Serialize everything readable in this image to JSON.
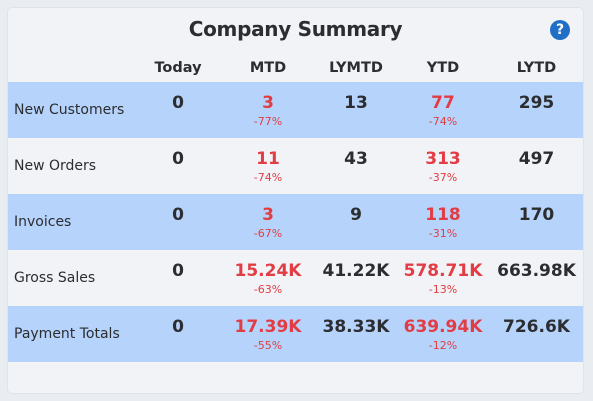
{
  "widget": {
    "title": "Company Summary",
    "help_icon_glyph": "?",
    "colors": {
      "shaded_row": "#b6d3fb",
      "negative": "#e23c44",
      "help_icon": "#1f6fc6"
    }
  },
  "columns": [
    "Today",
    "MTD",
    "LYMTD",
    "YTD",
    "LYTD"
  ],
  "rows": [
    {
      "label": "New Customers",
      "today": "0",
      "mtd": "3",
      "mtd_change": "-77%",
      "lymtd": "13",
      "ytd": "77",
      "ytd_change": "-74%",
      "lytd": "295"
    },
    {
      "label": "New Orders",
      "today": "0",
      "mtd": "11",
      "mtd_change": "-74%",
      "lymtd": "43",
      "ytd": "313",
      "ytd_change": "-37%",
      "lytd": "497"
    },
    {
      "label": "Invoices",
      "today": "0",
      "mtd": "3",
      "mtd_change": "-67%",
      "lymtd": "9",
      "ytd": "118",
      "ytd_change": "-31%",
      "lytd": "170"
    },
    {
      "label": "Gross Sales",
      "today": "0",
      "mtd": "15.24K",
      "mtd_change": "-63%",
      "lymtd": "41.22K",
      "ytd": "578.71K",
      "ytd_change": "-13%",
      "lytd": "663.98K"
    },
    {
      "label": "Payment Totals",
      "today": "0",
      "mtd": "17.39K",
      "mtd_change": "-55%",
      "lymtd": "38.33K",
      "ytd": "639.94K",
      "ytd_change": "-12%",
      "lytd": "726.6K"
    }
  ]
}
